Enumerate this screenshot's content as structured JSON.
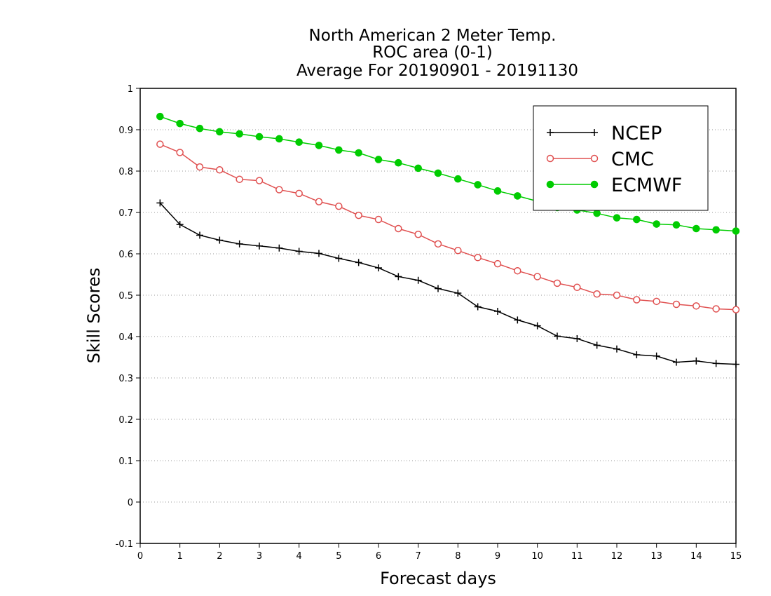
{
  "chart_data": {
    "type": "line",
    "title_lines": [
      "North American 2 Meter Temp.",
      "ROC area (0-1)",
      "Average For 20190901 - 20191130"
    ],
    "xlabel": "Forecast days",
    "ylabel": "Skill Scores",
    "xlim": [
      0,
      15
    ],
    "ylim": [
      -0.1,
      1
    ],
    "x_ticks": [
      0,
      1,
      2,
      3,
      4,
      5,
      6,
      7,
      8,
      9,
      10,
      11,
      12,
      13,
      14,
      15
    ],
    "x_tick_labels": [
      "0",
      "1",
      "2",
      "3",
      "4",
      "5",
      "6",
      "7",
      "8",
      "9",
      "10",
      "11",
      "12",
      "13",
      "14",
      "15"
    ],
    "y_ticks": [
      -0.1,
      0,
      0.1,
      0.2,
      0.3,
      0.4,
      0.5,
      0.6,
      0.7,
      0.8,
      0.9,
      1
    ],
    "y_tick_labels": [
      "-0.1",
      "0",
      "0.1",
      "0.2",
      "0.3",
      "0.4",
      "0.5",
      "0.6",
      "0.7",
      "0.8",
      "0.9",
      "1"
    ],
    "grid": "horizontal dotted",
    "legend_position": "top-right",
    "x": [
      0.5,
      1,
      1.5,
      2,
      2.5,
      3,
      3.5,
      4,
      4.5,
      5,
      5.5,
      6,
      6.5,
      7,
      7.5,
      8,
      8.5,
      9,
      9.5,
      10,
      10.5,
      11,
      11.5,
      12,
      12.5,
      13,
      13.5,
      14,
      14.5,
      15
    ],
    "series": [
      {
        "name": "NCEP",
        "color": "#000000",
        "marker": "plus",
        "values": [
          0.723,
          0.671,
          0.645,
          0.633,
          0.624,
          0.619,
          0.614,
          0.606,
          0.601,
          0.589,
          0.579,
          0.566,
          0.545,
          0.536,
          0.516,
          0.505,
          0.472,
          0.461,
          0.44,
          0.426,
          0.401,
          0.395,
          0.379,
          0.37,
          0.356,
          0.353,
          0.338,
          0.341,
          0.335,
          0.333
        ]
      },
      {
        "name": "CMC",
        "color": "#e05050",
        "marker": "open-circle",
        "values": [
          0.865,
          0.845,
          0.81,
          0.803,
          0.78,
          0.777,
          0.755,
          0.746,
          0.726,
          0.715,
          0.693,
          0.683,
          0.661,
          0.647,
          0.624,
          0.608,
          0.591,
          0.576,
          0.559,
          0.545,
          0.529,
          0.519,
          0.503,
          0.5,
          0.489,
          0.485,
          0.478,
          0.474,
          0.467,
          0.465
        ]
      },
      {
        "name": "ECMWF",
        "color": "#00cc00",
        "marker": "filled-circle",
        "values": [
          0.932,
          0.915,
          0.903,
          0.895,
          0.89,
          0.883,
          0.878,
          0.87,
          0.862,
          0.851,
          0.844,
          0.828,
          0.82,
          0.807,
          0.795,
          0.781,
          0.767,
          0.752,
          0.74,
          0.727,
          0.712,
          0.706,
          0.698,
          0.687,
          0.683,
          0.672,
          0.67,
          0.661,
          0.658,
          0.655
        ]
      }
    ]
  }
}
